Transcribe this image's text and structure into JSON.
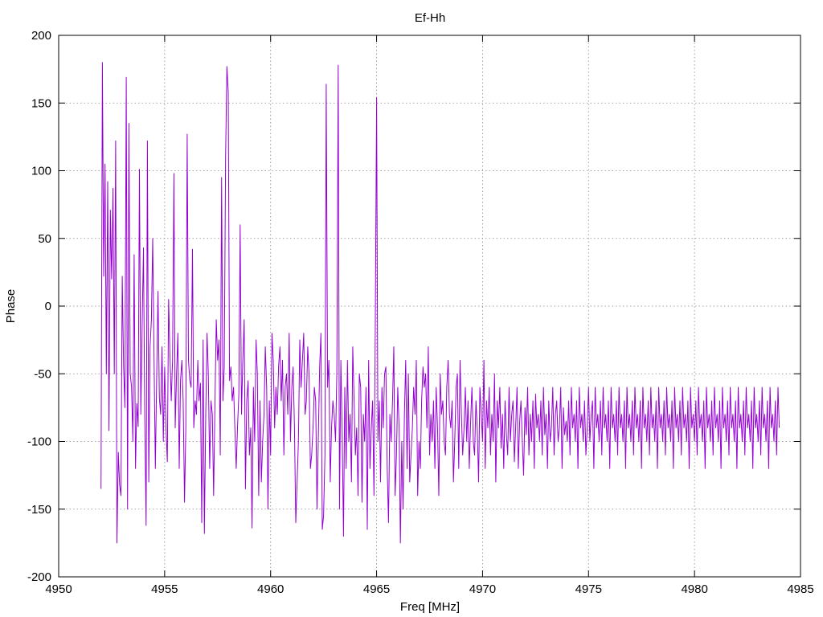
{
  "chart_data": {
    "type": "line",
    "title": "Ef-Hh",
    "xlabel": "Freq [MHz]",
    "ylabel": "Phase",
    "xlim": [
      4950,
      4985
    ],
    "ylim": [
      -200,
      200
    ],
    "x_ticks": [
      4950,
      4955,
      4960,
      4965,
      4970,
      4975,
      4980,
      4985
    ],
    "y_ticks": [
      200,
      150,
      100,
      50,
      0,
      -50,
      -100,
      -150,
      -200
    ],
    "grid": true,
    "series": [
      {
        "color": "#9400d3",
        "x_start": 4952.0,
        "x_end": 4984.0,
        "x_step": 0.0625,
        "values": [
          -135,
          180,
          22,
          105,
          -50,
          92,
          -92,
          71,
          20,
          87,
          -50,
          122,
          -175,
          -108,
          -132,
          -140,
          22,
          -45,
          -75,
          169,
          -150,
          135,
          -50,
          -60,
          -100,
          38,
          -120,
          -72,
          -89,
          101,
          -80,
          -17,
          43,
          -80,
          -162,
          122,
          -130,
          -30,
          -10,
          50,
          -40,
          -120,
          -50,
          11,
          -68,
          -80,
          -30,
          -100,
          -45,
          -90,
          -115,
          5,
          -35,
          -70,
          -40,
          98,
          -90,
          -50,
          -20,
          -120,
          -55,
          -40,
          -70,
          -145,
          -90,
          127,
          -40,
          -55,
          -60,
          42,
          -90,
          -70,
          -80,
          -40,
          -70,
          -57,
          -160,
          -25,
          -168,
          -80,
          -20,
          -50,
          -120,
          -70,
          -80,
          -140,
          -70,
          -10,
          -40,
          -25,
          -110,
          95,
          -70,
          -45,
          110,
          177,
          158,
          -55,
          -45,
          -70,
          -60,
          -90,
          -120,
          -90,
          -65,
          60,
          -80,
          -40,
          -10,
          -135,
          -70,
          -55,
          -110,
          -90,
          -164,
          -60,
          -100,
          -25,
          -50,
          -140,
          -70,
          -130,
          -100,
          -80,
          -30,
          -60,
          -150,
          -70,
          -110,
          -20,
          -40,
          -90,
          -60,
          -80,
          -45,
          -30,
          -70,
          -40,
          -110,
          -60,
          -50,
          -80,
          -20,
          -100,
          -60,
          -45,
          -90,
          -160,
          -130,
          -100,
          -25,
          -60,
          -40,
          -20,
          -80,
          -70,
          -30,
          -50,
          -120,
          -110,
          -90,
          -60,
          -70,
          -150,
          -100,
          -45,
          -20,
          -165,
          -155,
          -110,
          164,
          -60,
          -40,
          -130,
          -90,
          -70,
          -80,
          -100,
          -50,
          178,
          -150,
          -40,
          -90,
          -170,
          -60,
          -120,
          -40,
          -100,
          -80,
          -130,
          -30,
          -70,
          -110,
          -90,
          -140,
          -50,
          -60,
          -145,
          -80,
          -100,
          -60,
          -165,
          -40,
          -120,
          -90,
          -70,
          -140,
          -20,
          154,
          -100,
          -70,
          -130,
          -60,
          -90,
          -50,
          -45,
          -120,
          -160,
          -80,
          -100,
          -70,
          -30,
          -140,
          -110,
          -60,
          -90,
          -175,
          -100,
          -150,
          -80,
          -40,
          -120,
          -50,
          -130,
          -110,
          -90,
          -60,
          -80,
          -40,
          -140,
          -100,
          -120,
          -70,
          -45,
          -60,
          -50,
          -90,
          -30,
          -110,
          -80,
          -100,
          -70,
          -120,
          -60,
          -90,
          -140,
          -50,
          -80,
          -70,
          -100,
          -110,
          -60,
          -40,
          -80,
          -90,
          -70,
          -130,
          -100,
          -60,
          -50,
          -120,
          -40,
          -80,
          -110,
          -90,
          -60,
          -100,
          -70,
          -120,
          -85,
          -60,
          -100,
          -110,
          -70,
          -90,
          -130,
          -60,
          -80,
          -100,
          -40,
          -120,
          -70,
          -90,
          -60,
          -110,
          -80,
          -100,
          -50,
          -130,
          -70,
          -90,
          -60,
          -105,
          -80,
          -120,
          -70,
          -95,
          -110,
          -60,
          -100,
          -80,
          -70,
          -115,
          -90,
          -60,
          -120,
          -85,
          -70,
          -100,
          -125,
          -75,
          -95,
          -60,
          -110,
          -80,
          -100,
          -70,
          -120,
          -65,
          -90,
          -80,
          -100,
          -70,
          -110,
          -60,
          -95,
          -80,
          -120,
          -70,
          -100,
          -90,
          -60,
          -110,
          -80,
          -70,
          -100,
          -90,
          -60,
          -120,
          -75,
          -95,
          -85,
          -100,
          -70,
          -110,
          -60,
          -90,
          -80,
          -100,
          -70,
          -120,
          -60,
          -90,
          -80,
          -100,
          -70,
          -110,
          -90,
          -60,
          -100,
          -80,
          -70,
          -120,
          -60,
          -90,
          -80,
          -100,
          -70,
          -110,
          -60,
          -90,
          -80,
          -100,
          -70,
          -120,
          -60,
          -90,
          -80,
          -100,
          -70,
          -110,
          -60,
          -90,
          -80,
          -100,
          -70,
          -120,
          -60,
          -90,
          -80,
          -100,
          -70,
          -110,
          -60,
          -90,
          -80,
          -100,
          -70,
          -120,
          -60,
          -90,
          -80,
          -100,
          -70,
          -110,
          -60,
          -90,
          -80,
          -100,
          -70,
          -120,
          -60,
          -90,
          -80,
          -100,
          -70,
          -110,
          -60,
          -90,
          -80,
          -100,
          -70,
          -120,
          -60,
          -90,
          -80,
          -100,
          -70,
          -110,
          -60,
          -90,
          -80,
          -100,
          -70,
          -120,
          -60,
          -90,
          -80,
          -100,
          -70,
          -110,
          -60,
          -90,
          -80,
          -100,
          -70,
          -120,
          -60,
          -90,
          -80,
          -100,
          -70,
          -110,
          -60,
          -90,
          -80,
          -100,
          -70,
          -120,
          -60,
          -90,
          -80,
          -100,
          -70,
          -110,
          -60,
          -90,
          -80,
          -100,
          -70,
          -120,
          -60,
          -90,
          -80,
          -100,
          -70,
          -110,
          -60,
          -90,
          -80,
          -100,
          -70,
          -120,
          -60,
          -90,
          -80,
          -100,
          -70,
          -110,
          -60,
          -90,
          -80,
          -100,
          -70,
          -120,
          -60,
          -90,
          -80,
          -100,
          -70,
          -110,
          -60,
          -90
        ]
      }
    ]
  }
}
